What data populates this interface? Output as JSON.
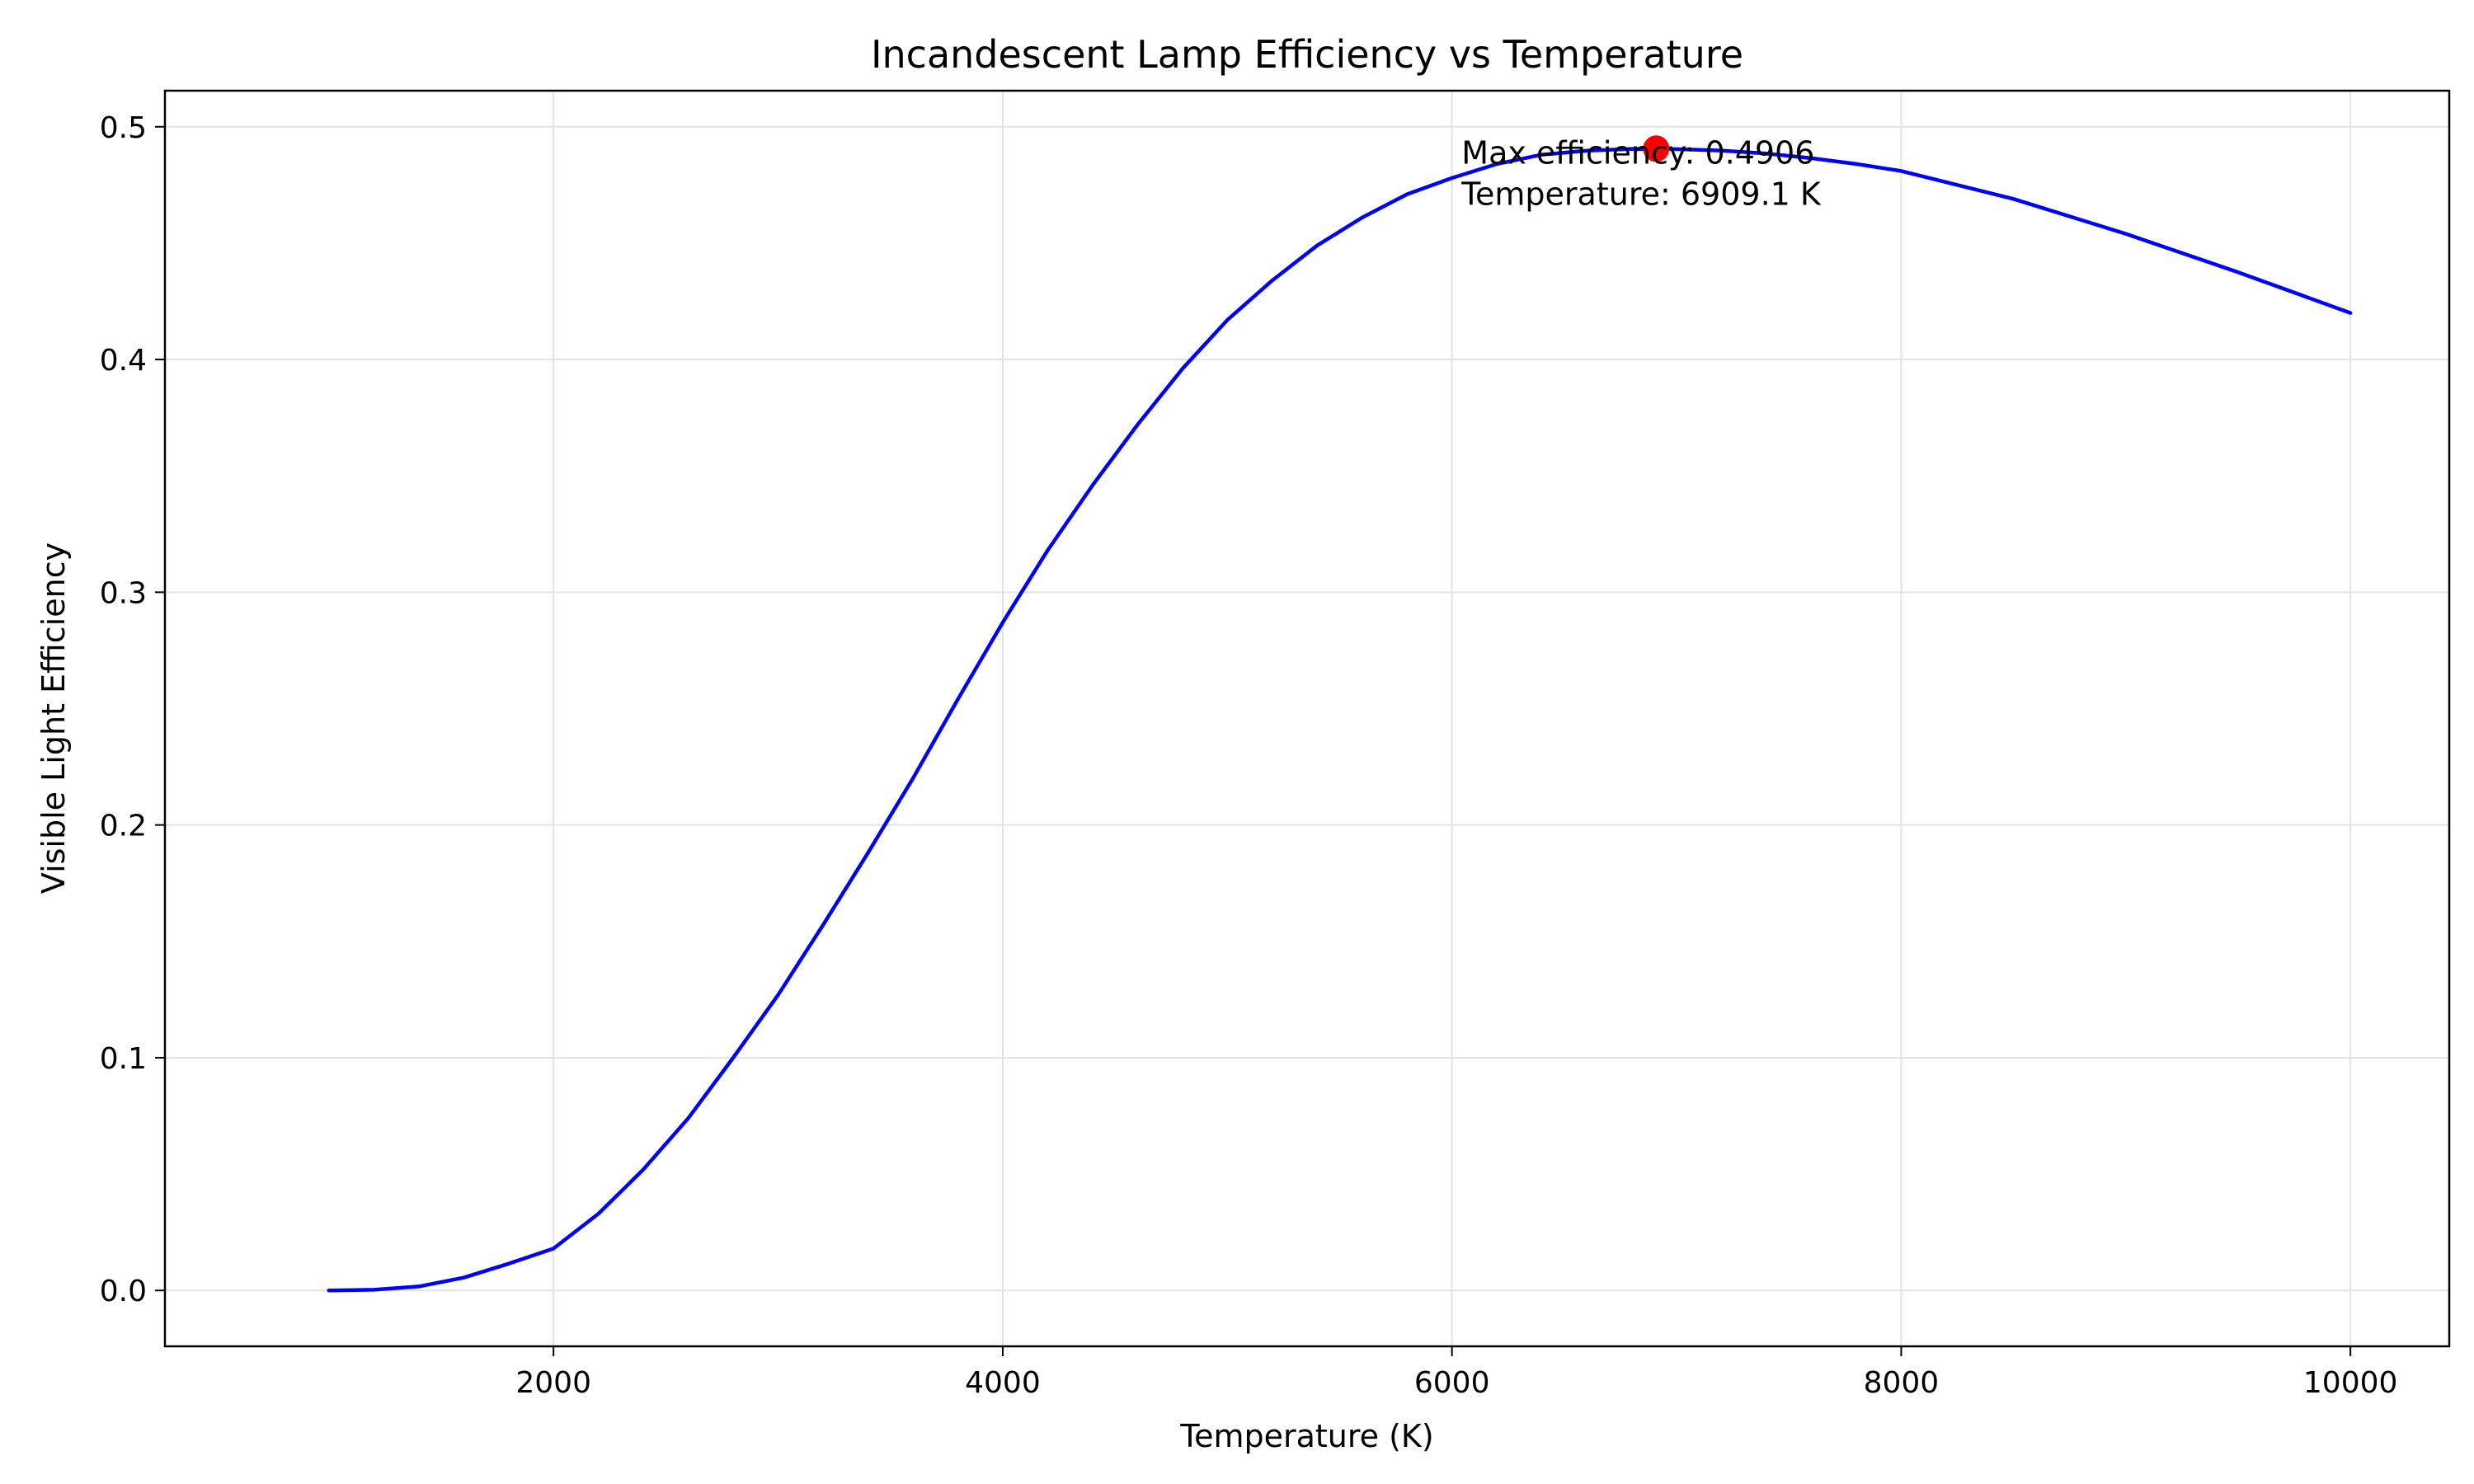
{
  "chart_data": {
    "type": "line",
    "title": "Incandescent Lamp Efficiency vs Temperature",
    "xlabel": "Temperature (K)",
    "ylabel": "Visible Light Efficiency",
    "xlim": [
      270,
      10440
    ],
    "ylim": [
      -0.024,
      0.5155
    ],
    "grid": true,
    "x_ticks": [
      2000,
      4000,
      6000,
      8000,
      10000
    ],
    "y_ticks": [
      0.0,
      0.1,
      0.2,
      0.3,
      0.4,
      0.5
    ],
    "x_tick_labels": [
      "2000",
      "4000",
      "6000",
      "8000",
      "10000"
    ],
    "y_tick_labels": [
      "0.0",
      "0.1",
      "0.2",
      "0.3",
      "0.4",
      "0.5"
    ],
    "series": [
      {
        "color": "#0000ff",
        "x": [
          1000,
          1200,
          1400,
          1600,
          1800,
          2000,
          2200,
          2400,
          2600,
          2800,
          3000,
          3200,
          3400,
          3600,
          3800,
          4000,
          4200,
          4400,
          4600,
          4800,
          5000,
          5200,
          5400,
          5600,
          5800,
          6000,
          6200,
          6400,
          6600,
          6800,
          7000,
          7200,
          7400,
          7600,
          7800,
          8000,
          8500,
          9000,
          9500,
          10000
        ],
        "y": [
          0.0,
          0.0003,
          0.0017,
          0.0055,
          0.0115,
          0.018,
          0.033,
          0.052,
          0.074,
          0.1,
          0.127,
          0.157,
          0.188,
          0.22,
          0.254,
          0.287,
          0.318,
          0.346,
          0.372,
          0.396,
          0.417,
          0.434,
          0.449,
          0.461,
          0.471,
          0.478,
          0.484,
          0.488,
          0.4897,
          0.4905,
          0.4904,
          0.4898,
          0.4885,
          0.4865,
          0.484,
          0.481,
          0.469,
          0.454,
          0.4375,
          0.42
        ]
      },
      {
        "type": "scatter",
        "color": "#ff0000",
        "x": [
          6909.1
        ],
        "y": [
          0.4906
        ]
      }
    ],
    "annotation": {
      "line1": "Max efficiency: 0.4906",
      "line2": "Temperature: 6909.1 K",
      "x": 6909.1,
      "y": 0.4906
    }
  }
}
